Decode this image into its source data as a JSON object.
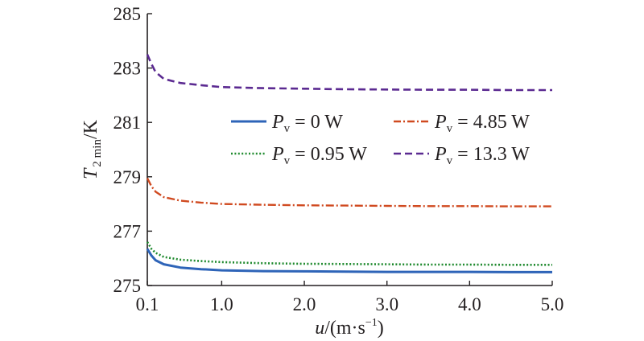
{
  "chart_data": {
    "type": "line",
    "x_label": {
      "var": "u",
      "unit": "/(m·s",
      "exp": "−1",
      "close": ")"
    },
    "y_label": {
      "var": "T",
      "sub": "2 min",
      "unit": "/K"
    },
    "x_ticks": [
      {
        "value": 0.1,
        "label": "0.1"
      },
      {
        "value": 1.0,
        "label": "1.0"
      },
      {
        "value": 2.0,
        "label": "2.0"
      },
      {
        "value": 3.0,
        "label": "3.0"
      },
      {
        "value": 4.0,
        "label": "4.0"
      },
      {
        "value": 5.0,
        "label": "5.0"
      }
    ],
    "y_ticks": [
      275,
      277,
      279,
      281,
      283,
      285
    ],
    "xlim": [
      0.1,
      5.0
    ],
    "ylim": [
      275,
      285
    ],
    "grid": false,
    "legend_position": "top-right",
    "series": [
      {
        "name": {
          "sym": "P",
          "sub": "v",
          "rest": " = 0 W"
        },
        "color": "#2e64b8",
        "style": "solid",
        "x": [
          0.1,
          0.15,
          0.2,
          0.3,
          0.5,
          0.75,
          1.0,
          1.5,
          2.0,
          2.5,
          3.0,
          3.5,
          4.0,
          4.5,
          5.0
        ],
        "y": [
          276.35,
          276.1,
          275.93,
          275.78,
          275.66,
          275.6,
          275.56,
          275.53,
          275.52,
          275.51,
          275.5,
          275.5,
          275.5,
          275.49,
          275.49
        ]
      },
      {
        "name": {
          "sym": "P",
          "sub": "v",
          "rest": " = 0.95 W"
        },
        "color": "#1f8a2e",
        "style": "dotted",
        "x": [
          0.1,
          0.15,
          0.2,
          0.3,
          0.5,
          0.75,
          1.0,
          1.5,
          2.0,
          2.5,
          3.0,
          3.5,
          4.0,
          4.5,
          5.0
        ],
        "y": [
          276.6,
          276.35,
          276.2,
          276.05,
          275.95,
          275.9,
          275.86,
          275.82,
          275.8,
          275.79,
          275.78,
          275.77,
          275.77,
          275.76,
          275.76
        ]
      },
      {
        "name": {
          "sym": "P",
          "sub": "v",
          "rest": " = 4.85 W"
        },
        "color": "#d04a20",
        "style": "dashdot",
        "x": [
          0.1,
          0.15,
          0.2,
          0.3,
          0.5,
          0.75,
          1.0,
          1.5,
          2.0,
          2.5,
          3.0,
          3.5,
          4.0,
          4.5,
          5.0
        ],
        "y": [
          278.95,
          278.65,
          278.45,
          278.25,
          278.12,
          278.05,
          278.0,
          277.97,
          277.95,
          277.94,
          277.93,
          277.92,
          277.92,
          277.91,
          277.91
        ]
      },
      {
        "name": {
          "sym": "P",
          "sub": "v",
          "rest": " = 13.3 W"
        },
        "color": "#5b2a91",
        "style": "dashed",
        "x": [
          0.1,
          0.15,
          0.2,
          0.3,
          0.5,
          0.75,
          1.0,
          1.5,
          2.0,
          2.5,
          3.0,
          3.5,
          4.0,
          4.5,
          5.0
        ],
        "y": [
          283.5,
          283.15,
          282.85,
          282.6,
          282.45,
          282.37,
          282.3,
          282.26,
          282.24,
          282.22,
          282.21,
          282.2,
          282.2,
          282.19,
          282.19
        ]
      }
    ]
  }
}
